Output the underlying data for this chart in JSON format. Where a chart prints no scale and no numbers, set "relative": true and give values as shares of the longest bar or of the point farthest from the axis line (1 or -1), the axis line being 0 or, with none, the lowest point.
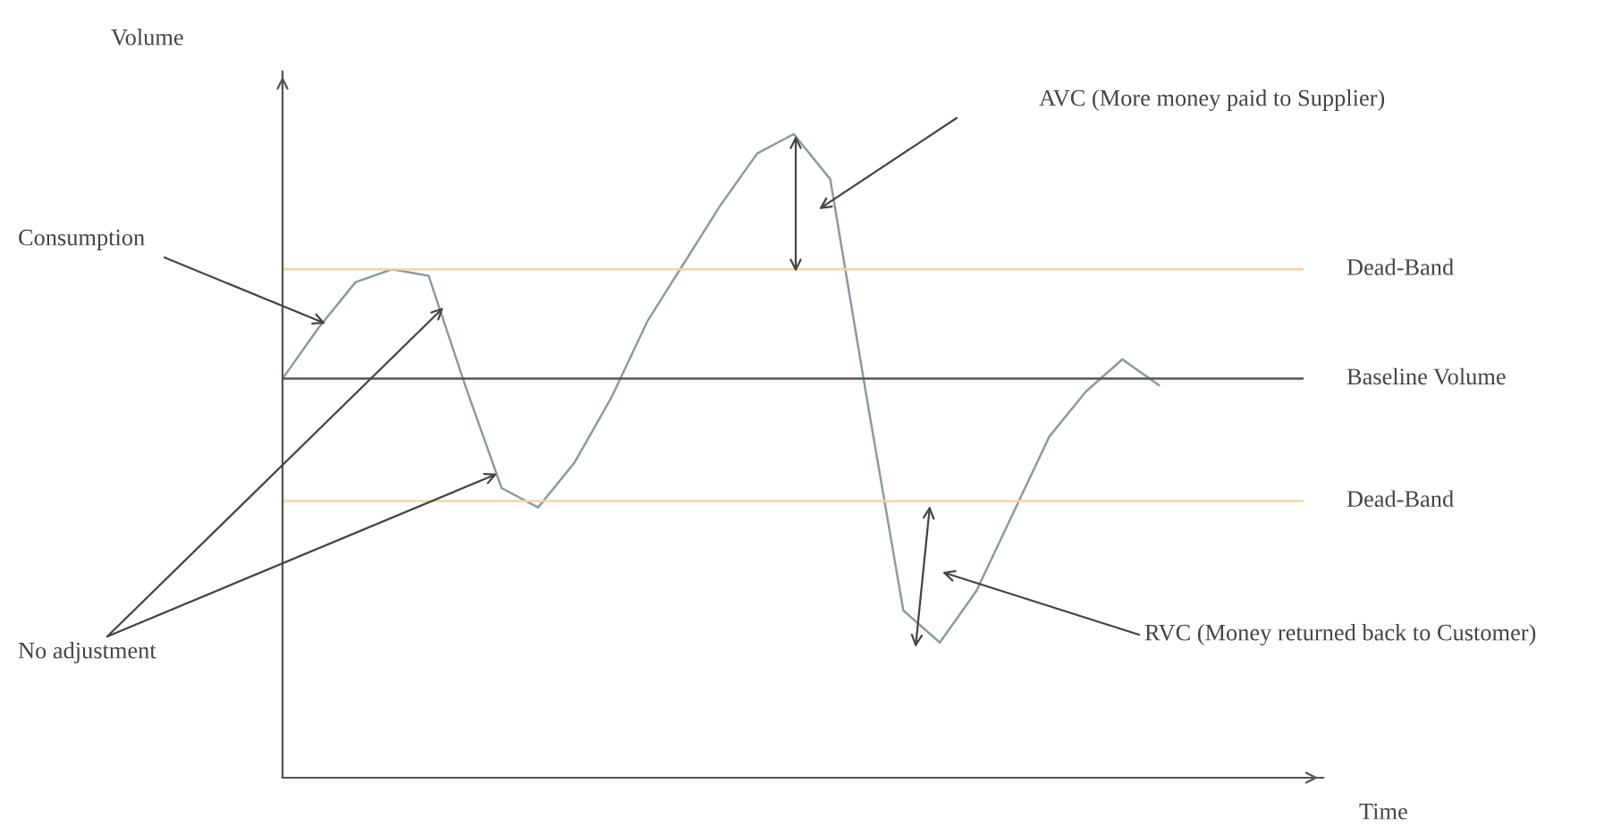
{
  "chart_data": {
    "type": "line",
    "relative": true,
    "categories": [
      null,
      null,
      null,
      null,
      null,
      null,
      null,
      null,
      null,
      null,
      null,
      null,
      null,
      null,
      null,
      null,
      null,
      null,
      null,
      null,
      null,
      null,
      null,
      null,
      null
    ],
    "series": [
      {
        "color": "#8a9ca3",
        "values": [
          0.62,
          0.7,
          0.77,
          0.79,
          0.78,
          0.61,
          0.45,
          0.42,
          0.49,
          0.59,
          0.71,
          0.8,
          0.89,
          0.97,
          1.0,
          0.93,
          0.59,
          0.26,
          0.21,
          0.29,
          0.41,
          0.53,
          0.6,
          0.65,
          0.61
        ]
      }
    ],
    "ref_lines": [
      {
        "axis": "y",
        "value": 0.79,
        "label": "Dead-Band",
        "color": "#f0d6a6"
      },
      {
        "axis": "y",
        "value": 0.62,
        "label": "Baseline Volume",
        "color": "#555555"
      },
      {
        "axis": "y",
        "value": 0.43,
        "label": "Dead-Band",
        "color": "#f0d6a6"
      }
    ],
    "annotations": [
      "Volume",
      "Consumption",
      "No adjustment",
      "AVC (More money paid to Supplier)",
      "RVC (Money returned back to Customer)",
      "Time"
    ],
    "legend": false,
    "marker": "none",
    "line_style": "solid"
  }
}
